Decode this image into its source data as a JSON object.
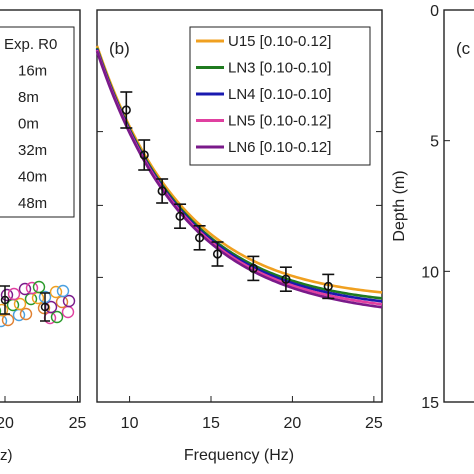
{
  "chart_data": [
    {
      "panel": "left",
      "type": "scatter",
      "legend": {
        "entries": [
          "Exp. R0",
          "16m",
          "8m",
          "0m",
          "32m",
          "40m",
          "48m"
        ],
        "placement": "top-right"
      },
      "x_ticks": [
        "20",
        "25"
      ],
      "x_label": "z)",
      "xlim": [
        8,
        26
      ]
    },
    {
      "panel": "b",
      "label": "(b)",
      "type": "line",
      "xlabel": "Frequency (Hz)",
      "xlim": [
        8,
        25.5
      ],
      "x_ticks": [
        "10",
        "15",
        "20",
        "25"
      ],
      "legend_placement": "top-right",
      "series": [
        {
          "name": "U15 [0.10-0.12]",
          "color": "#f0a020"
        },
        {
          "name": "LN3 [0.10-0.10]",
          "color": "#1f7a1f"
        },
        {
          "name": "LN4 [0.10-0.10]",
          "color": "#1a1ab0"
        },
        {
          "name": "LN5 [0.10-0.12]",
          "color": "#e040a0"
        },
        {
          "name": "LN6 [0.10-0.12]",
          "color": "#7a1a8a"
        }
      ],
      "experimental_points": [
        {
          "x": 9.8,
          "y": 0.9,
          "err": 0.3
        },
        {
          "x": 10.9,
          "y": 0.65,
          "err": 0.25
        },
        {
          "x": 12.0,
          "y": 0.45,
          "err": 0.2
        },
        {
          "x": 13.1,
          "y": 0.31,
          "err": 0.2
        },
        {
          "x": 14.3,
          "y": 0.19,
          "err": 0.2
        },
        {
          "x": 15.4,
          "y": 0.1,
          "err": 0.2
        },
        {
          "x": 17.6,
          "y": 0.02,
          "err": 0.2
        },
        {
          "x": 19.6,
          "y": -0.04,
          "err": 0.2
        },
        {
          "x": 22.2,
          "y": -0.08,
          "err": 0.2
        }
      ]
    },
    {
      "panel": "c",
      "label": "(c",
      "type": "line",
      "ylabel": "Depth (m)",
      "ylim": [
        0,
        15
      ],
      "y_ticks": [
        "0",
        "5",
        "10",
        "15"
      ]
    }
  ]
}
